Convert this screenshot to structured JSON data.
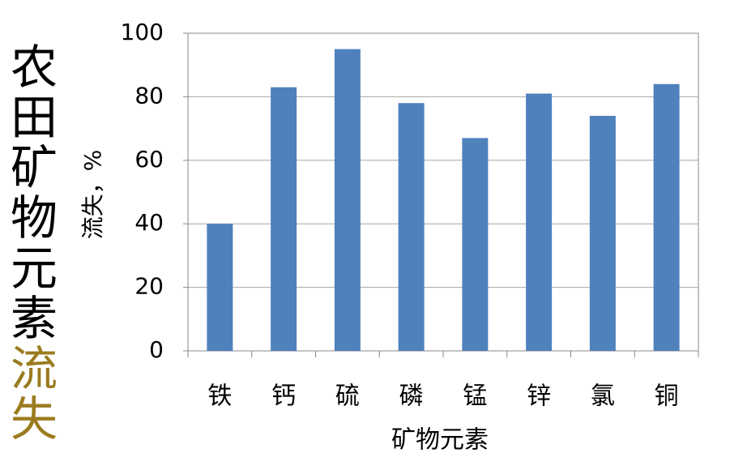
{
  "chart_data": {
    "type": "bar",
    "title": [
      {
        "text": "农田矿物元素",
        "color": "#000000"
      },
      {
        "text": "流失",
        "color": "#9a7b1e"
      }
    ],
    "x_label": "矿物元素",
    "y_label": "流失，%",
    "categories": [
      "铁",
      "钙",
      "硫",
      "磷",
      "锰",
      "锌",
      "氯",
      "铜"
    ],
    "values": [
      40,
      83,
      95,
      78,
      67,
      81,
      74,
      84
    ],
    "color": "#4f81bd",
    "ylim": [
      0,
      100
    ],
    "yticks": [
      0,
      20,
      40,
      60,
      80,
      100
    ],
    "grid": true
  }
}
